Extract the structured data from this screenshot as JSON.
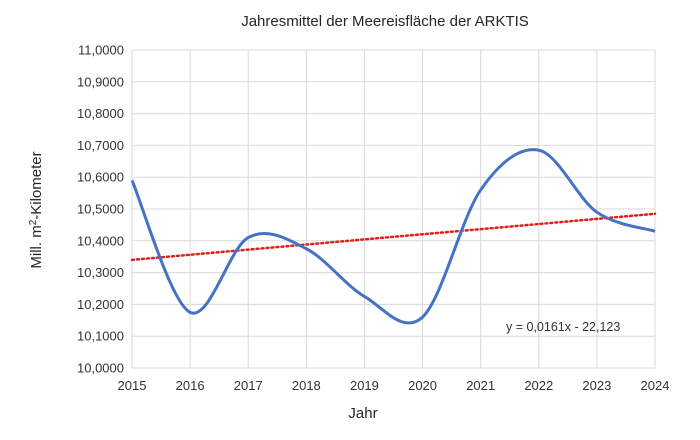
{
  "chart_data": {
    "type": "line",
    "title": "Jahresmittel der Meereisfläche der ARKTIS",
    "xlabel": "Jahr",
    "ylabel": {
      "prefix": "Mill. m",
      "superscript": "2",
      "suffix": "-Kilometer"
    },
    "xlim": [
      2015,
      2024
    ],
    "ylim": [
      10.0,
      11.0
    ],
    "x_ticks": [
      "2015",
      "2016",
      "2017",
      "2018",
      "2019",
      "2020",
      "2021",
      "2022",
      "2023",
      "2024"
    ],
    "y_ticks": [
      "10,0000",
      "10,1000",
      "10,2000",
      "10,3000",
      "10,4000",
      "10,5000",
      "10,6000",
      "10,7000",
      "10,8000",
      "10,9000",
      "11,0000"
    ],
    "grid": "horizontal",
    "series": [
      {
        "color": "#4472c4",
        "smooth": true,
        "x": [
          2015,
          2016,
          2017,
          2018,
          2019,
          2020,
          2021,
          2022,
          2023,
          2024
        ],
        "y": [
          10.59,
          10.175,
          10.41,
          10.375,
          10.225,
          10.16,
          10.56,
          10.685,
          10.49,
          10.43
        ]
      }
    ],
    "trendline": {
      "color": "#e0201a",
      "style": "dotted",
      "slope": 0.0161,
      "intercept": -22.123,
      "y_start": 10.34,
      "y_end": 10.485,
      "equation": "y = 0,0161x - 22,123"
    }
  }
}
